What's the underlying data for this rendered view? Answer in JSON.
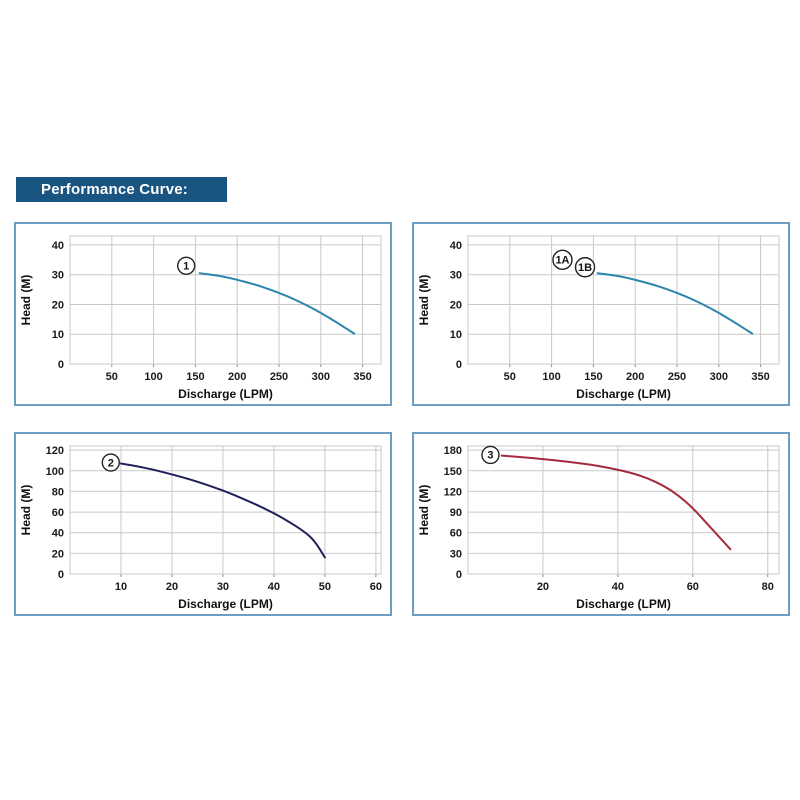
{
  "header": {
    "title": "Performance Curve:",
    "bg_color": "#1A5480",
    "text_color": "#FFFFFF"
  },
  "colors": {
    "panel_border": "#6D9EC4",
    "grid": "#C9C9C9",
    "tick_stub": "#8A8A8A",
    "text": "#1A1A1A"
  },
  "chart_data": [
    {
      "id": "curve-1",
      "type": "line",
      "title": "",
      "xlabel": "Discharge (LPM)",
      "ylabel": "Head (M)",
      "xlim": [
        0,
        372
      ],
      "ylim": [
        0,
        43
      ],
      "x_ticks": [
        50,
        100,
        150,
        200,
        250,
        300,
        350
      ],
      "y_ticks": [
        0,
        10,
        20,
        30,
        40
      ],
      "grid": true,
      "series": [
        {
          "name": "1",
          "color": "#2B85AC",
          "points": [
            [
              155,
              30.5
            ],
            [
              170,
              30
            ],
            [
              185,
              29.3
            ],
            [
              200,
              28.3
            ],
            [
              220,
              26.8
            ],
            [
              240,
              25
            ],
            [
              260,
              22.8
            ],
            [
              280,
              20.2
            ],
            [
              300,
              17.2
            ],
            [
              320,
              13.8
            ],
            [
              340,
              10.2
            ]
          ]
        }
      ],
      "annotations": [
        {
          "label": "1",
          "x": 139,
          "y": 33
        }
      ]
    },
    {
      "id": "curve-1a-1b",
      "type": "line",
      "title": "",
      "xlabel": "Discharge (LPM)",
      "ylabel": "Head (M)",
      "xlim": [
        0,
        372
      ],
      "ylim": [
        0,
        43
      ],
      "x_ticks": [
        50,
        100,
        150,
        200,
        250,
        300,
        350
      ],
      "y_ticks": [
        0,
        10,
        20,
        30,
        40
      ],
      "grid": true,
      "series": [
        {
          "name": "1A/1B",
          "color": "#2B85AC",
          "points": [
            [
              155,
              30.5
            ],
            [
              170,
              30
            ],
            [
              185,
              29.3
            ],
            [
              200,
              28.3
            ],
            [
              220,
              26.8
            ],
            [
              240,
              25
            ],
            [
              260,
              22.8
            ],
            [
              280,
              20.2
            ],
            [
              300,
              17.2
            ],
            [
              320,
              13.8
            ],
            [
              340,
              10.2
            ]
          ]
        }
      ],
      "annotations": [
        {
          "label": "1A",
          "x": 113,
          "y": 35
        },
        {
          "label": "1B",
          "x": 140,
          "y": 32.5
        }
      ]
    },
    {
      "id": "curve-2",
      "type": "line",
      "title": "",
      "xlabel": "Discharge (LPM)",
      "ylabel": "Head (M)",
      "xlim": [
        0,
        61
      ],
      "ylim": [
        0,
        124
      ],
      "x_ticks": [
        10,
        20,
        30,
        40,
        50,
        60
      ],
      "y_ticks": [
        0,
        20,
        40,
        60,
        80,
        100,
        120
      ],
      "grid": true,
      "series": [
        {
          "name": "2",
          "color": "#20205A",
          "points": [
            [
              10,
              107
            ],
            [
              13,
              104.5
            ],
            [
              16,
              101.5
            ],
            [
              20,
              96.5
            ],
            [
              24,
              91
            ],
            [
              28,
              84.5
            ],
            [
              32,
              77
            ],
            [
              36,
              68.5
            ],
            [
              40,
              59
            ],
            [
              43,
              50.5
            ],
            [
              46,
              41
            ],
            [
              48,
              32
            ],
            [
              50,
              16
            ]
          ]
        }
      ],
      "annotations": [
        {
          "label": "2",
          "x": 8,
          "y": 108
        }
      ]
    },
    {
      "id": "curve-3",
      "type": "line",
      "title": "",
      "xlabel": "Discharge (LPM)",
      "ylabel": "Head (M)",
      "xlim": [
        0,
        83
      ],
      "ylim": [
        0,
        186
      ],
      "x_ticks": [
        20,
        40,
        60,
        80
      ],
      "y_ticks": [
        0,
        30,
        60,
        90,
        120,
        150,
        180
      ],
      "grid": true,
      "series": [
        {
          "name": "3",
          "color": "#A42A3C",
          "points": [
            [
              9,
              172
            ],
            [
              14,
              170
            ],
            [
              20,
              167
            ],
            [
              26,
              163.5
            ],
            [
              32,
              159.5
            ],
            [
              38,
              154
            ],
            [
              44,
              146.5
            ],
            [
              48,
              139
            ],
            [
              52,
              129
            ],
            [
              56,
              115
            ],
            [
              60,
              96
            ],
            [
              64,
              72
            ],
            [
              67,
              54
            ],
            [
              70,
              36
            ]
          ]
        }
      ],
      "annotations": [
        {
          "label": "3",
          "x": 6,
          "y": 173
        }
      ]
    }
  ]
}
